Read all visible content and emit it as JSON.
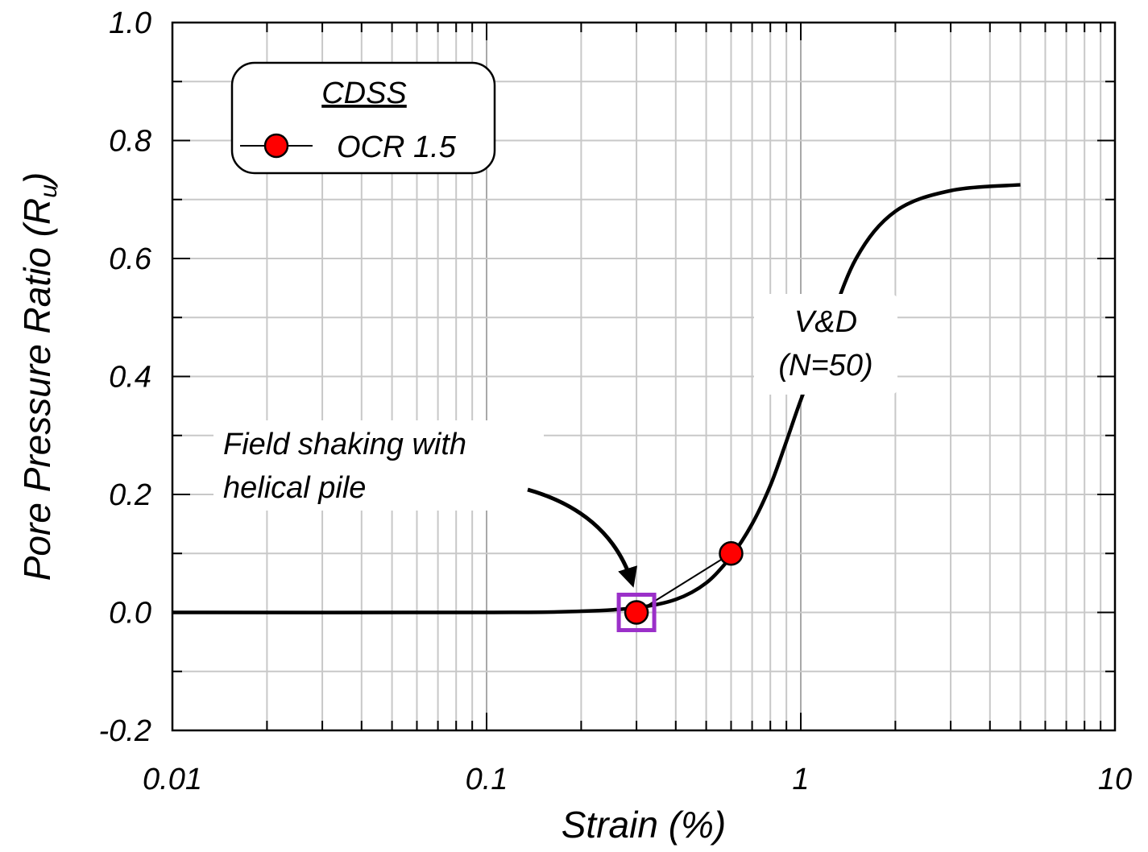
{
  "chart_data": {
    "type": "line",
    "xscale": "log",
    "xlim": [
      0.01,
      10
    ],
    "ylim": [
      -0.2,
      1.0
    ],
    "xticks": [
      0.01,
      0.1,
      1,
      10
    ],
    "xtick_labels": [
      "0.01",
      "0.1",
      "1",
      "10"
    ],
    "yticks": [
      -0.2,
      0.0,
      0.2,
      0.4,
      0.6,
      0.8,
      1.0
    ],
    "ytick_labels": [
      "-0.2",
      "0.0",
      "0.2",
      "0.4",
      "0.6",
      "0.8",
      "1.0"
    ],
    "xlabel": "Strain (%)",
    "ylabel": "Pore Pressure Ratio (R",
    "ylabel_sub": "u",
    "ylabel_close": ")",
    "grid": true,
    "legend": {
      "title": "CDSS",
      "entries": [
        "OCR 1.5"
      ],
      "placement": "top-left"
    },
    "series": [
      {
        "name": "V&D (N=50)",
        "style": "thick-line",
        "color": "#000000",
        "x": [
          0.01,
          0.1,
          0.2,
          0.3,
          0.4,
          0.5,
          0.6,
          0.7,
          0.8,
          0.9,
          1.0,
          1.2,
          1.5,
          2.0,
          3.0,
          5.0
        ],
        "y": [
          0.0,
          0.0,
          0.002,
          0.008,
          0.022,
          0.05,
          0.095,
          0.15,
          0.215,
          0.29,
          0.36,
          0.47,
          0.6,
          0.68,
          0.715,
          0.725
        ]
      },
      {
        "name": "OCR 1.5",
        "style": "line-markers",
        "color": "#000000",
        "marker_color": "#ff0000",
        "x": [
          0.3,
          0.6
        ],
        "y": [
          0.0,
          0.1
        ]
      }
    ],
    "annotations": {
      "vd_label": [
        "V&D",
        "(N=50)"
      ],
      "field_label": [
        "Field shaking with",
        "helical pile"
      ],
      "highlight_box_color": "#9b30c9",
      "highlight_point": {
        "x": 0.3,
        "y": 0.0
      }
    }
  }
}
